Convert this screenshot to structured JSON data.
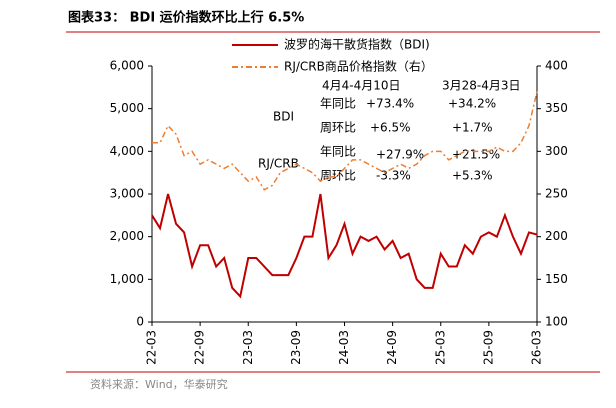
{
  "chart_data": {
    "type": "line",
    "title": "图表33： BDI 运价指数环比上行 6.5%",
    "categories": [
      "22-03",
      null,
      null,
      null,
      null,
      null,
      "22-09",
      null,
      null,
      null,
      null,
      null,
      "23-03",
      null,
      null,
      null,
      null,
      null,
      "23-09",
      null,
      null,
      null,
      null,
      null,
      "24-03",
      null,
      null,
      null,
      null,
      null,
      "24-09",
      null,
      null,
      null,
      null,
      null,
      "25-03",
      null,
      null,
      null,
      null,
      null,
      "25-09",
      null,
      null,
      null,
      null,
      null,
      "26-03"
    ],
    "series": [
      {
        "name": "波罗的海干散货指数（BDI)",
        "color": "#c00000",
        "axis": "y",
        "values": [
          2500,
          2200,
          3000,
          2300,
          2100,
          1300,
          1800,
          1800,
          1300,
          1500,
          800,
          600,
          1500,
          1500,
          1300,
          1100,
          1100,
          1100,
          1500,
          2000,
          2000,
          3000,
          1500,
          1800,
          2300,
          1600,
          2000,
          1900,
          2000,
          1700,
          1900,
          1500,
          1600,
          1000,
          800,
          800,
          1600,
          1300,
          1300,
          1800,
          1600,
          2000,
          2100,
          2000,
          2500,
          2000,
          1600,
          2100,
          2050
        ]
      },
      {
        "name": "RJ/CRB商品价格指数（右）",
        "color": "#ed7d31",
        "axis": "y2",
        "values": [
          310,
          310,
          330,
          320,
          295,
          300,
          285,
          290,
          285,
          280,
          285,
          275,
          265,
          270,
          255,
          260,
          275,
          280,
          285,
          280,
          275,
          265,
          270,
          270,
          280,
          290,
          290,
          285,
          280,
          275,
          280,
          285,
          280,
          285,
          295,
          300,
          300,
          290,
          295,
          300,
          300,
          300,
          300,
          305,
          300,
          300,
          310,
          330,
          370
        ]
      }
    ],
    "ylim": [
      0,
      6000
    ],
    "yticks": [
      0,
      {
        "value": 1000,
        "label": "1,000"
      },
      {
        "value": 2000,
        "label": "2,000"
      },
      {
        "value": 3000,
        "label": "3,000"
      },
      {
        "value": 4000,
        "label": "4,000"
      },
      {
        "value": 5000,
        "label": "5,000"
      },
      {
        "value": 6000,
        "label": "6,000"
      }
    ],
    "y2lim": [
      100,
      400
    ],
    "y2ticks": [
      100,
      150,
      200,
      250,
      300,
      350,
      400
    ],
    "annotations": {
      "col1": "4月4-4月10日",
      "col2": "3月28-4月3日",
      "bdi": "BDI",
      "crb": "RJ/CRB",
      "yoy1": "年同比",
      "wow1": "周环比",
      "yoy2": "年同比",
      "wow2": "周环比",
      "bdi_yoy_1": "+73.4%",
      "bdi_yoy_2": "+34.2%",
      "bdi_wow_1": "+6.5%",
      "bdi_wow_2": "+1.7%",
      "crb_yoy_1": "+27.9%",
      "crb_yoy_2": "+21.5%",
      "crb_wow_1": "-3.3%",
      "crb_wow_2": "+5.3%"
    },
    "source": "资料来源：Wind，华泰研究"
  }
}
